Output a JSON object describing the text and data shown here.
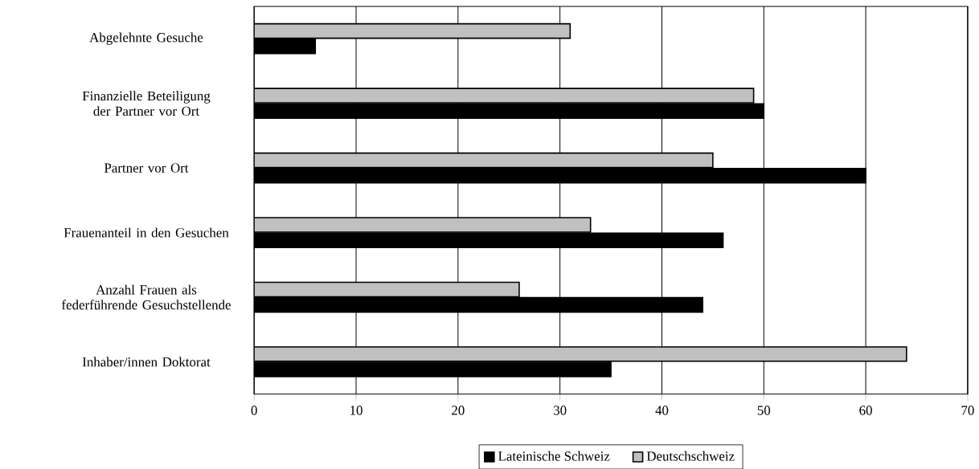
{
  "chart_data": {
    "type": "bar",
    "orientation": "horizontal",
    "categories": [
      "Abgelehnte Gesuche",
      "Finanzielle Beteiligung der Partner vor Ort",
      "Partner vor Ort",
      "Frauenanteil in den Gesuchen",
      "Anzahl Frauen als federführende Gesuchstellende",
      "Inhaber/innen Doktorat"
    ],
    "series": [
      {
        "name": "Lateinische Schweiz",
        "color": "#000000",
        "values": [
          6,
          50,
          60,
          46,
          44,
          35
        ]
      },
      {
        "name": "Deutschschweiz",
        "color": "#c0c0c0",
        "values": [
          31,
          49,
          45,
          33,
          26,
          64
        ]
      }
    ],
    "xlim": [
      0,
      70
    ],
    "xticks": [
      0,
      10,
      20,
      30,
      40,
      50,
      60,
      70
    ],
    "grid": "x",
    "legend": "bottom"
  }
}
